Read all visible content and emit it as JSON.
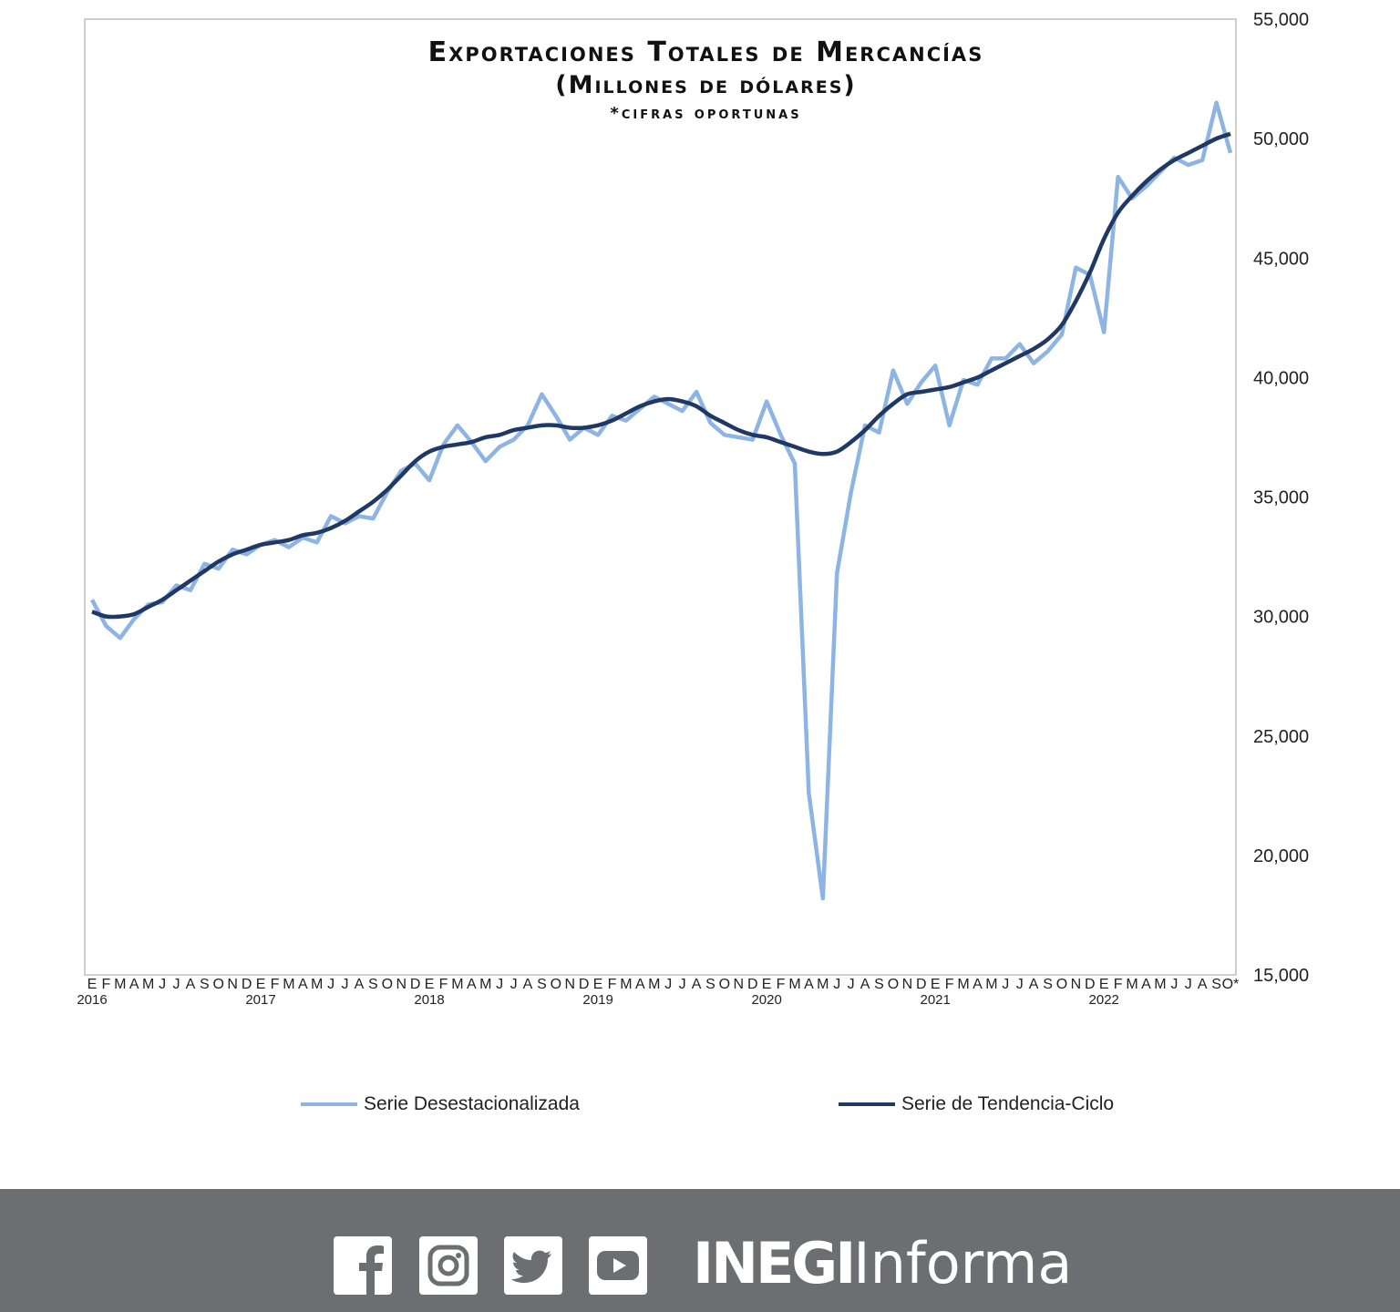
{
  "chart_data": {
    "type": "line",
    "title": "Exportaciones Totales de Mercancías",
    "subtitle": "(Millones de dólares)",
    "note": "*cifras oportunas",
    "x_start": "2016-01",
    "x_end": "2022-10",
    "month_letters": [
      "E",
      "F",
      "M",
      "A",
      "M",
      "J",
      "J",
      "A",
      "S",
      "O",
      "N",
      "D"
    ],
    "last_label": "O*",
    "years": [
      "2016",
      "2017",
      "2018",
      "2019",
      "2020",
      "2021",
      "2022"
    ],
    "ylim": [
      15000,
      55000
    ],
    "y_ticks": [
      "15,000",
      "20,000",
      "25,000",
      "30,000",
      "35,000",
      "40,000",
      "45,000",
      "50,000",
      "55,000"
    ],
    "y_tick_values": [
      15000,
      20000,
      25000,
      30000,
      35000,
      40000,
      45000,
      50000,
      55000
    ],
    "y_axis_position": "right",
    "grid": false,
    "legend_placement": "bottom",
    "series": [
      {
        "name": "Serie Desestacionalizada",
        "color": "#8db4e2",
        "values": [
          30700,
          29600,
          29100,
          29900,
          30500,
          30600,
          31300,
          31100,
          32200,
          32000,
          32800,
          32600,
          33000,
          33200,
          32900,
          33300,
          33100,
          34200,
          33900,
          34200,
          34100,
          35200,
          36100,
          36400,
          35700,
          37200,
          38000,
          37300,
          36500,
          37100,
          37400,
          38000,
          39300,
          38400,
          37400,
          37900,
          37600,
          38400,
          38200,
          38700,
          39200,
          38900,
          38600,
          39400,
          38100,
          37600,
          37500,
          37400,
          39000,
          37600,
          36400,
          22600,
          18200,
          31800,
          35200,
          38000,
          37700,
          40300,
          38900,
          39800,
          40500,
          38000,
          39900,
          39700,
          40800,
          40800,
          41400,
          40600,
          41100,
          41800,
          44600,
          44300,
          41900,
          48400,
          47500,
          48000,
          48600,
          49200,
          48900,
          49100,
          51500,
          49400
        ]
      },
      {
        "name": "Serie de Tendencia-Ciclo",
        "color": "#1f3864",
        "values": [
          30200,
          30000,
          30000,
          30100,
          30400,
          30700,
          31100,
          31500,
          31900,
          32300,
          32600,
          32800,
          33000,
          33100,
          33200,
          33400,
          33500,
          33700,
          34000,
          34400,
          34800,
          35300,
          35900,
          36500,
          36900,
          37100,
          37200,
          37300,
          37500,
          37600,
          37800,
          37900,
          38000,
          38000,
          37900,
          37900,
          38000,
          38200,
          38500,
          38800,
          39000,
          39100,
          39000,
          38800,
          38400,
          38100,
          37800,
          37600,
          37500,
          37300,
          37100,
          36900,
          36800,
          36900,
          37300,
          37800,
          38400,
          38900,
          39300,
          39400,
          39500,
          39600,
          39800,
          40000,
          40300,
          40600,
          40900,
          41200,
          41600,
          42200,
          43200,
          44400,
          45800,
          46900,
          47600,
          48200,
          48700,
          49100,
          49400,
          49700,
          50000,
          50200
        ]
      }
    ]
  },
  "footer": {
    "icons": [
      "facebook-icon",
      "instagram-icon",
      "twitter-icon",
      "youtube-icon"
    ],
    "logo_bold": "INEGI",
    "logo_light": "Informa",
    "background": "#6d6e71"
  }
}
